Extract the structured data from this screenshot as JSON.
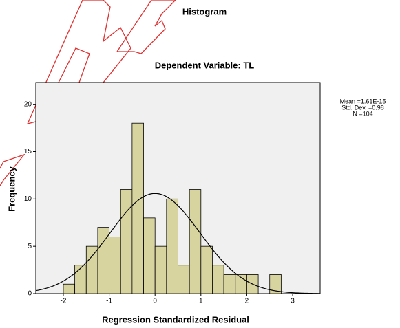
{
  "chart_data": {
    "type": "histogram",
    "title": "Histogram",
    "subtitle": "Dependent Variable: TL",
    "xlabel": "Regression Standardized Residual",
    "ylabel": "Frequency",
    "bins": [
      -2,
      -1.75,
      -1.5,
      -1.25,
      -1,
      -0.75,
      -0.5,
      -0.25,
      0,
      0.25,
      0.5,
      0.75,
      1,
      1.25,
      1.5,
      1.75,
      2,
      2.25,
      2.5,
      2.75
    ],
    "values": [
      1,
      3,
      5,
      7,
      6,
      11,
      18,
      8,
      5,
      10,
      3,
      11,
      5,
      3,
      2,
      2,
      2,
      0,
      2
    ],
    "color": "#d8d4a0",
    "xlim": [
      -2.6,
      3.6
    ],
    "ylim": [
      0,
      22.3
    ],
    "xticks": [
      -2,
      -1,
      0,
      1,
      2,
      3
    ],
    "yticks": [
      0,
      5,
      10,
      15,
      20
    ],
    "stats": {
      "mean": {
        "value": 1.61e-15,
        "label": "Mean =1.61E-15"
      },
      "sd": {
        "value": 0.98,
        "label": "Std. Dev. =0.98"
      },
      "n": {
        "value": 104,
        "label": "N =104"
      }
    }
  }
}
